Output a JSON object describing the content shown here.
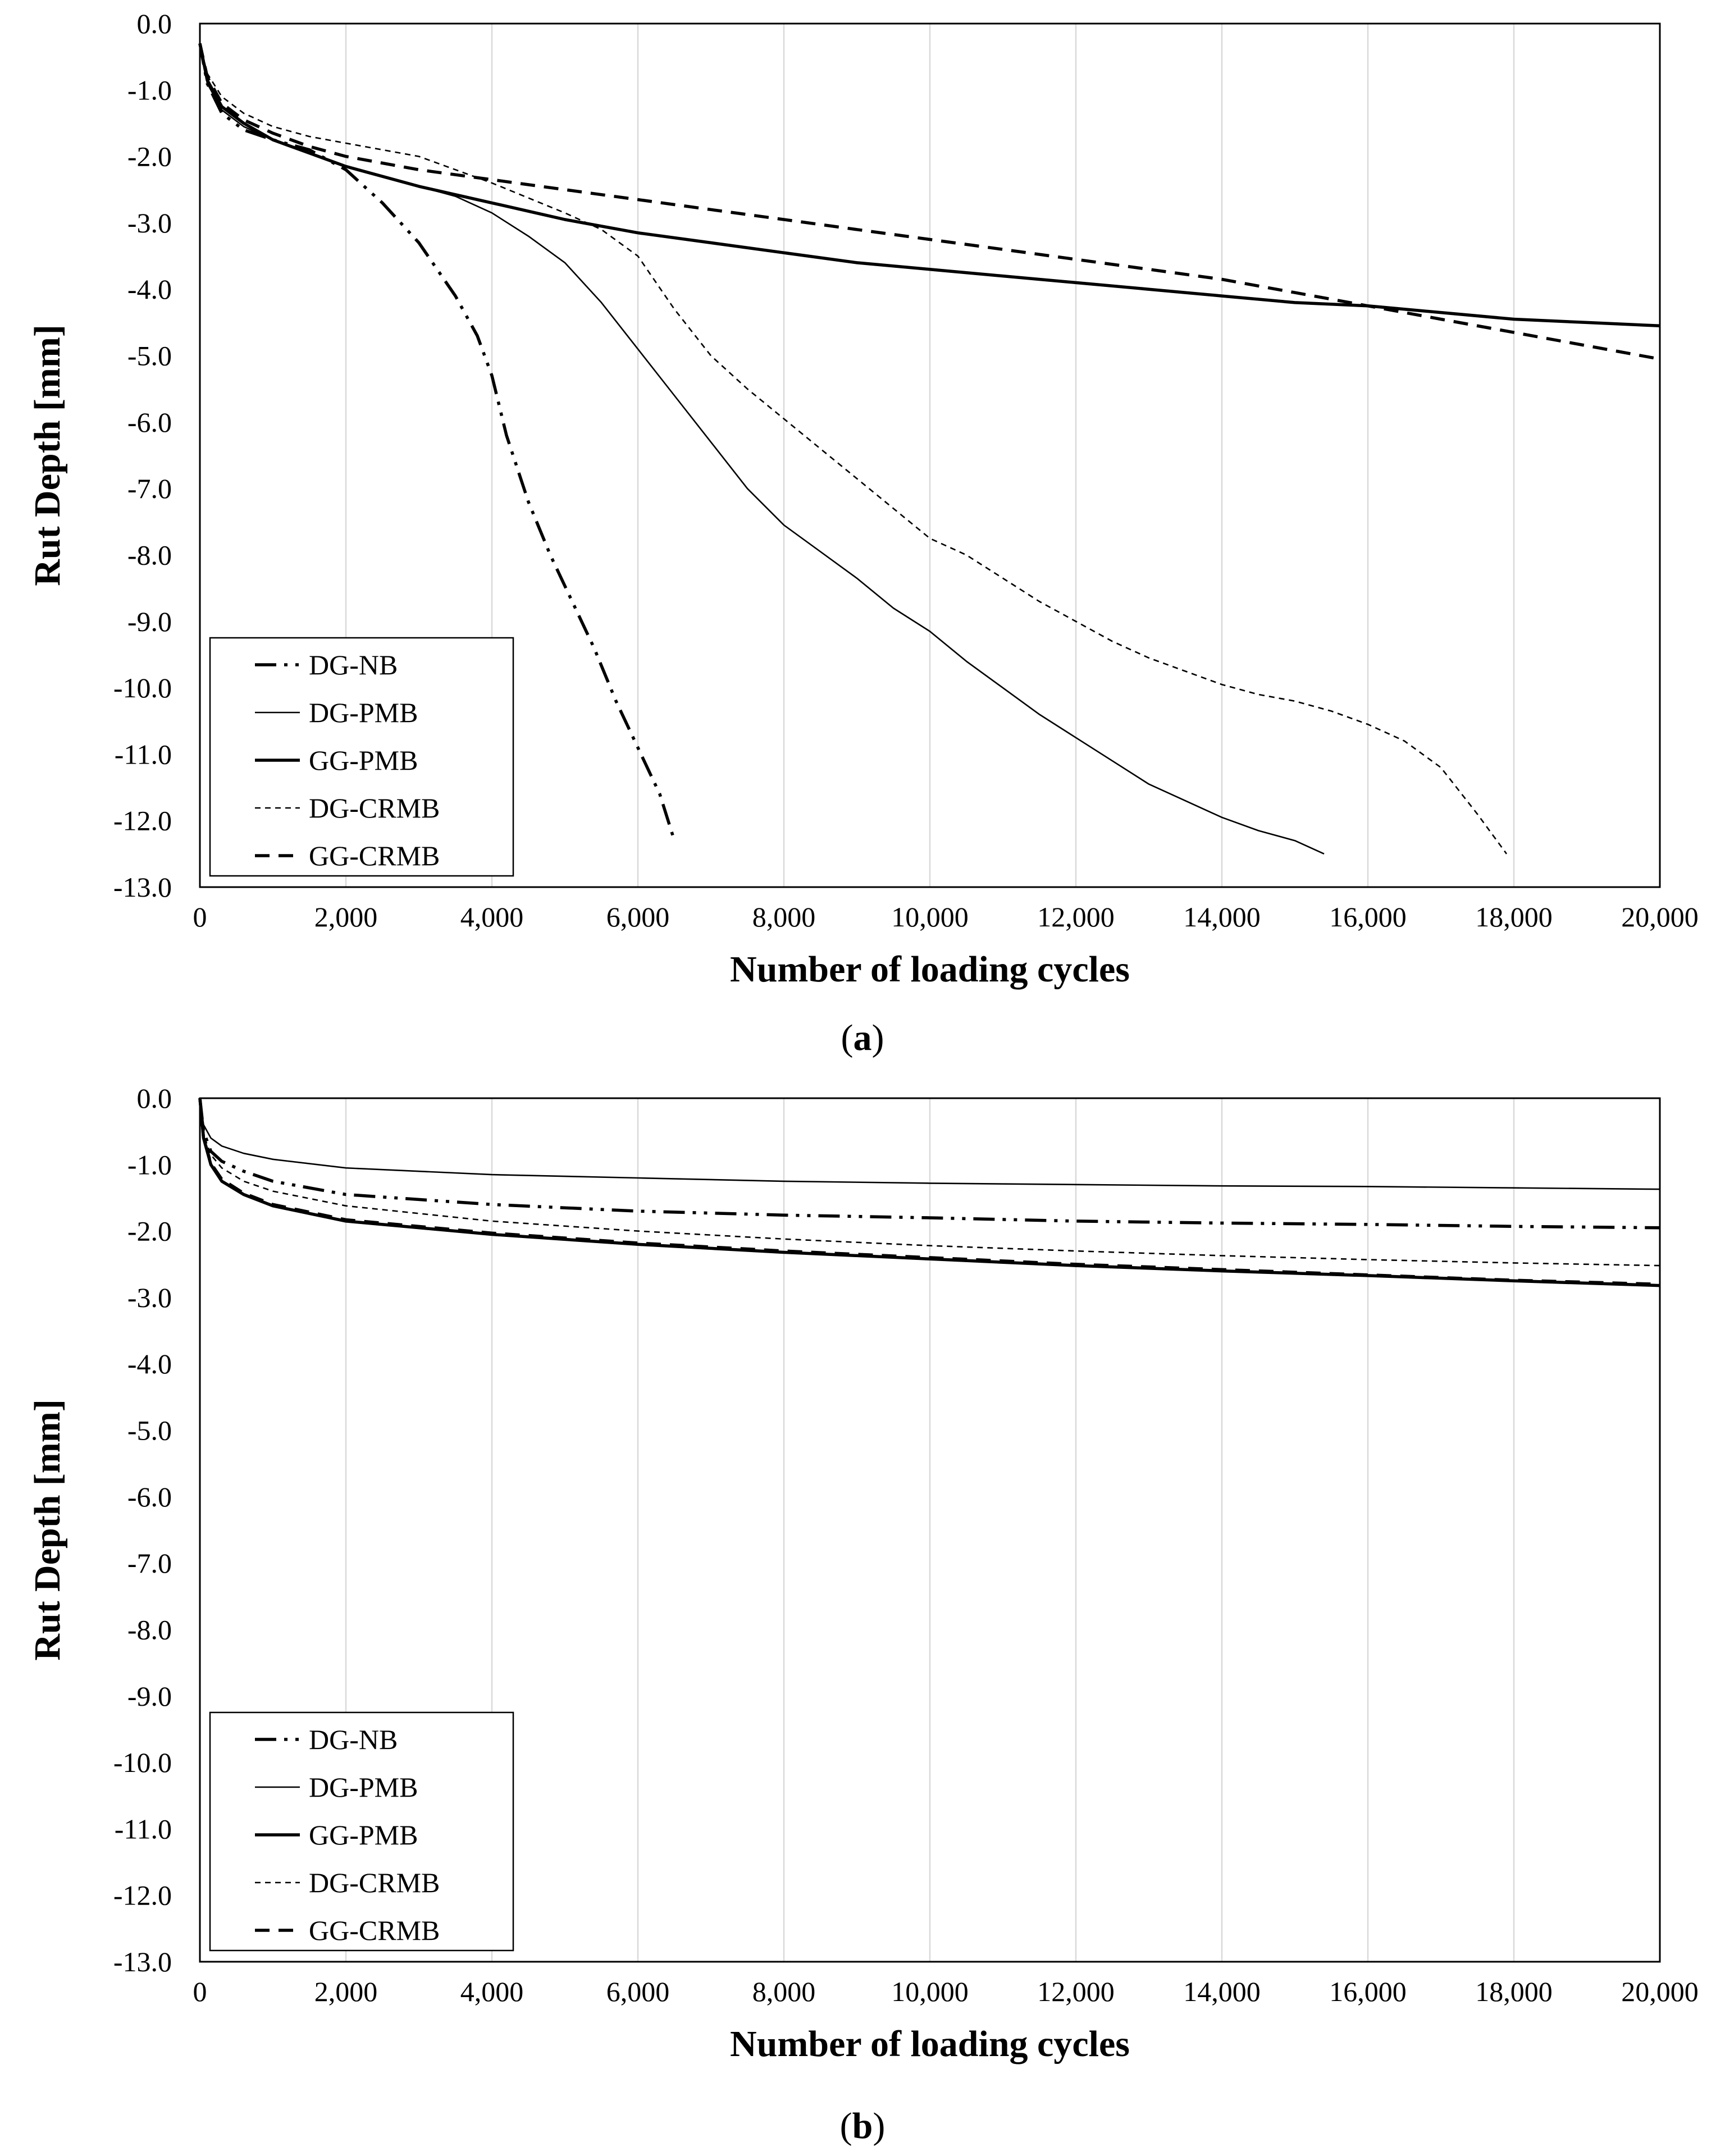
{
  "figure": {
    "panels": [
      {
        "label_open": "(",
        "label_letter": "a",
        "label_close": ")"
      },
      {
        "label_open": "(",
        "label_letter": "b",
        "label_close": ")"
      }
    ]
  },
  "chart_data": [
    {
      "type": "line",
      "panel": "a",
      "xlabel": "Number of loading cycles",
      "ylabel": "Rut Depth [mm]",
      "xlim": [
        0,
        20000
      ],
      "ylim": [
        -13.0,
        0.0
      ],
      "x_ticks": [
        "0",
        "2,000",
        "4,000",
        "6,000",
        "8,000",
        "10,000",
        "12,000",
        "14,000",
        "16,000",
        "18,000",
        "20,000"
      ],
      "y_ticks": [
        "0.0",
        "-1.0",
        "-2.0",
        "-3.0",
        "-4.0",
        "-5.0",
        "-6.0",
        "-7.0",
        "-8.0",
        "-9.0",
        "-10.0",
        "-11.0",
        "-12.0",
        "-13.0"
      ],
      "grid": "vertical",
      "legend_position": "bottom-left",
      "series": [
        {
          "name": "DG-NB",
          "style": "dashdotdot",
          "x": [
            0,
            100,
            300,
            600,
            1000,
            1500,
            2000,
            2500,
            3000,
            3500,
            3800,
            4000,
            4200,
            4500,
            4800,
            5100,
            5400,
            5700,
            6000,
            6300,
            6500
          ],
          "y": [
            -0.3,
            -0.9,
            -1.35,
            -1.6,
            -1.75,
            -1.9,
            -2.2,
            -2.7,
            -3.3,
            -4.1,
            -4.7,
            -5.3,
            -6.2,
            -7.2,
            -8.0,
            -8.7,
            -9.4,
            -10.2,
            -10.9,
            -11.6,
            -12.3
          ]
        },
        {
          "name": "DG-PMB",
          "style": "thin",
          "x": [
            0,
            100,
            300,
            600,
            1000,
            1500,
            2000,
            2500,
            3000,
            3500,
            4000,
            4500,
            5000,
            5500,
            6000,
            6500,
            7000,
            7500,
            8000,
            8500,
            9000,
            9500,
            10000,
            10500,
            11000,
            11500,
            12000,
            12500,
            13000,
            13500,
            14000,
            14500,
            15000,
            15400
          ],
          "y": [
            -0.3,
            -0.9,
            -1.3,
            -1.55,
            -1.75,
            -1.95,
            -2.15,
            -2.3,
            -2.45,
            -2.6,
            -2.85,
            -3.2,
            -3.6,
            -4.2,
            -4.9,
            -5.6,
            -6.3,
            -7.0,
            -7.55,
            -7.95,
            -8.35,
            -8.8,
            -9.15,
            -9.6,
            -10.0,
            -10.4,
            -10.75,
            -11.1,
            -11.45,
            -11.7,
            -11.95,
            -12.15,
            -12.3,
            -12.5
          ]
        },
        {
          "name": "GG-PMB",
          "style": "solid",
          "x": [
            0,
            100,
            300,
            600,
            1000,
            1500,
            2000,
            3000,
            4000,
            5000,
            6000,
            7000,
            8000,
            9000,
            10000,
            11000,
            12000,
            13000,
            14000,
            15000,
            16000,
            17000,
            18000,
            19000,
            20000
          ],
          "y": [
            -0.3,
            -0.85,
            -1.25,
            -1.5,
            -1.75,
            -1.95,
            -2.15,
            -2.45,
            -2.7,
            -2.95,
            -3.15,
            -3.3,
            -3.45,
            -3.6,
            -3.7,
            -3.8,
            -3.9,
            -4.0,
            -4.1,
            -4.2,
            -4.25,
            -4.35,
            -4.45,
            -4.5,
            -4.55
          ]
        },
        {
          "name": "DG-CRMB",
          "style": "dotted",
          "x": [
            0,
            100,
            300,
            600,
            1000,
            1500,
            2000,
            3000,
            4000,
            5000,
            5500,
            6000,
            6500,
            7000,
            7500,
            8000,
            8500,
            9000,
            9500,
            10000,
            10500,
            11000,
            11500,
            12000,
            12500,
            13000,
            13500,
            14000,
            14500,
            15000,
            15500,
            16000,
            16500,
            17000,
            17500,
            17900
          ],
          "y": [
            -0.3,
            -0.75,
            -1.1,
            -1.35,
            -1.55,
            -1.7,
            -1.8,
            -2.0,
            -2.4,
            -2.85,
            -3.1,
            -3.5,
            -4.3,
            -5.0,
            -5.5,
            -5.95,
            -6.4,
            -6.85,
            -7.3,
            -7.75,
            -8.0,
            -8.35,
            -8.7,
            -9.0,
            -9.3,
            -9.55,
            -9.75,
            -9.95,
            -10.1,
            -10.2,
            -10.35,
            -10.55,
            -10.8,
            -11.2,
            -11.9,
            -12.5
          ]
        },
        {
          "name": "GG-CRMB",
          "style": "dashed",
          "x": [
            0,
            100,
            300,
            600,
            1000,
            1500,
            2000,
            3000,
            4000,
            5000,
            6000,
            7000,
            8000,
            9000,
            10000,
            11000,
            12000,
            13000,
            14000,
            15000,
            16000,
            17000,
            18000,
            19000,
            20000
          ],
          "y": [
            -0.3,
            -0.8,
            -1.2,
            -1.45,
            -1.65,
            -1.85,
            -2.0,
            -2.2,
            -2.35,
            -2.5,
            -2.65,
            -2.8,
            -2.95,
            -3.1,
            -3.25,
            -3.4,
            -3.55,
            -3.7,
            -3.85,
            -4.05,
            -4.25,
            -4.45,
            -4.65,
            -4.85,
            -5.05
          ]
        }
      ]
    },
    {
      "type": "line",
      "panel": "b",
      "xlabel": "Number of loading cycles",
      "ylabel": "Rut Depth [mm]",
      "xlim": [
        0,
        20000
      ],
      "ylim": [
        -13.0,
        0.0
      ],
      "x_ticks": [
        "0",
        "2,000",
        "4,000",
        "6,000",
        "8,000",
        "10,000",
        "12,000",
        "14,000",
        "16,000",
        "18,000",
        "20,000"
      ],
      "y_ticks": [
        "0.0",
        "-1.0",
        "-2.0",
        "-3.0",
        "-4.0",
        "-5.0",
        "-6.0",
        "-7.0",
        "-8.0",
        "-9.0",
        "-10.0",
        "-11.0",
        "-12.0",
        "-13.0"
      ],
      "grid": "vertical",
      "legend_position": "bottom-left",
      "series": [
        {
          "name": "DG-NB",
          "style": "dashdotdot",
          "x": [
            0,
            50,
            150,
            300,
            600,
            1000,
            2000,
            4000,
            6000,
            8000,
            10000,
            12000,
            14000,
            16000,
            18000,
            20000
          ],
          "y": [
            0.0,
            -0.5,
            -0.8,
            -0.95,
            -1.1,
            -1.25,
            -1.45,
            -1.6,
            -1.7,
            -1.76,
            -1.8,
            -1.85,
            -1.88,
            -1.9,
            -1.93,
            -1.95
          ]
        },
        {
          "name": "DG-PMB",
          "style": "thin",
          "x": [
            0,
            50,
            150,
            300,
            600,
            1000,
            2000,
            4000,
            6000,
            8000,
            10000,
            12000,
            14000,
            16000,
            18000,
            20000
          ],
          "y": [
            0.0,
            -0.4,
            -0.6,
            -0.72,
            -0.83,
            -0.92,
            -1.05,
            -1.15,
            -1.2,
            -1.25,
            -1.28,
            -1.3,
            -1.32,
            -1.33,
            -1.35,
            -1.37
          ]
        },
        {
          "name": "GG-PMB",
          "style": "solid",
          "x": [
            0,
            50,
            150,
            300,
            600,
            1000,
            2000,
            4000,
            6000,
            8000,
            10000,
            12000,
            14000,
            16000,
            18000,
            20000
          ],
          "y": [
            0.0,
            -0.6,
            -1.0,
            -1.25,
            -1.45,
            -1.62,
            -1.85,
            -2.05,
            -2.2,
            -2.32,
            -2.42,
            -2.52,
            -2.6,
            -2.67,
            -2.75,
            -2.82
          ]
        },
        {
          "name": "DG-CRMB",
          "style": "dotted",
          "x": [
            0,
            50,
            150,
            300,
            600,
            1000,
            2000,
            4000,
            6000,
            8000,
            10000,
            12000,
            14000,
            16000,
            18000,
            20000
          ],
          "y": [
            0.0,
            -0.55,
            -0.85,
            -1.05,
            -1.25,
            -1.4,
            -1.62,
            -1.85,
            -2.0,
            -2.12,
            -2.22,
            -2.3,
            -2.37,
            -2.43,
            -2.48,
            -2.52
          ]
        },
        {
          "name": "GG-CRMB",
          "style": "dashed",
          "x": [
            0,
            50,
            150,
            300,
            600,
            1000,
            2000,
            4000,
            6000,
            8000,
            10000,
            12000,
            14000,
            16000,
            18000,
            20000
          ],
          "y": [
            0.0,
            -0.6,
            -0.98,
            -1.22,
            -1.43,
            -1.6,
            -1.83,
            -2.03,
            -2.18,
            -2.3,
            -2.4,
            -2.5,
            -2.58,
            -2.66,
            -2.74,
            -2.8
          ]
        }
      ]
    }
  ]
}
